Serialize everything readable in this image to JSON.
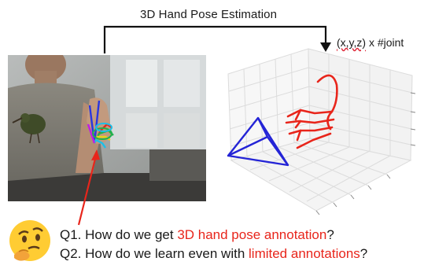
{
  "title": "3D Hand Pose Estimation",
  "output_label": {
    "prefix": "",
    "xyz": "(x,y,z)",
    "suffix": " x #joint"
  },
  "questions": [
    {
      "label": "Q1.",
      "before": " How do we get ",
      "highlight": "3D hand pose annotation",
      "after": "?"
    },
    {
      "label": "Q2.",
      "before": " How do we learn even with ",
      "highlight": "limited annotations",
      "after": "?"
    }
  ],
  "colors": {
    "highlight": "#e8251b",
    "hand_skeleton": "#e8251b",
    "camera_frustum": "#2424d6",
    "grid": "#dcdcdc"
  },
  "icons": {
    "thinking_face": "thinking-face-icon"
  }
}
